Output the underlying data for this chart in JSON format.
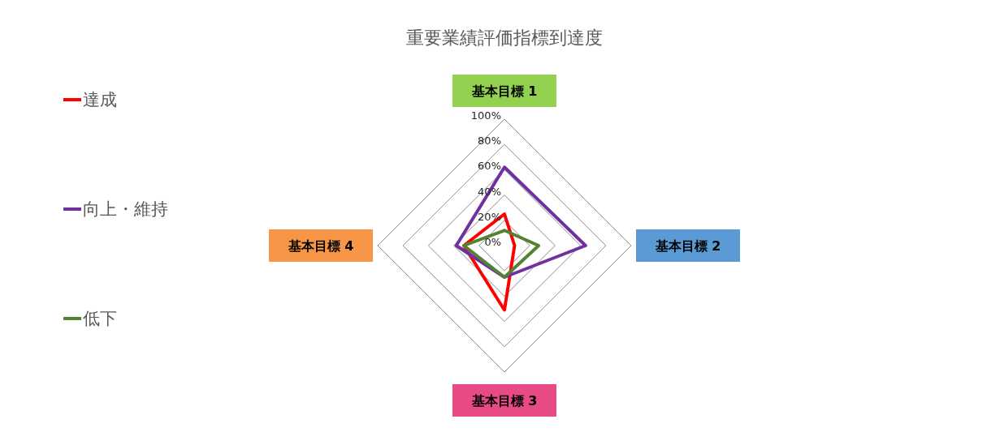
{
  "chart_data": {
    "type": "radar",
    "title": "重要業績評価指標到達度",
    "categories": [
      "基本目標 1",
      "基本目標 2",
      "基本目標 3",
      "基本目標 4"
    ],
    "series": [
      {
        "name": "達成",
        "color": "#ff0000",
        "values": [
          25,
          8,
          51,
          32
        ]
      },
      {
        "name": "向上・維持",
        "color": "#7030a0",
        "values": [
          62,
          64,
          25,
          38
        ]
      },
      {
        "name": "低下",
        "color": "#548235",
        "values": [
          12,
          27,
          25,
          32
        ]
      }
    ],
    "ylim": [
      0,
      100
    ],
    "yticks": [
      {
        "value": 0,
        "label": "0%"
      },
      {
        "value": 20,
        "label": "20%"
      },
      {
        "value": 40,
        "label": "40%"
      },
      {
        "value": 60,
        "label": "60%"
      },
      {
        "value": 80,
        "label": "80%"
      },
      {
        "value": 100,
        "label": "100%"
      }
    ],
    "grid": true,
    "legend": "left",
    "marker": "none",
    "line_style": "solid"
  }
}
